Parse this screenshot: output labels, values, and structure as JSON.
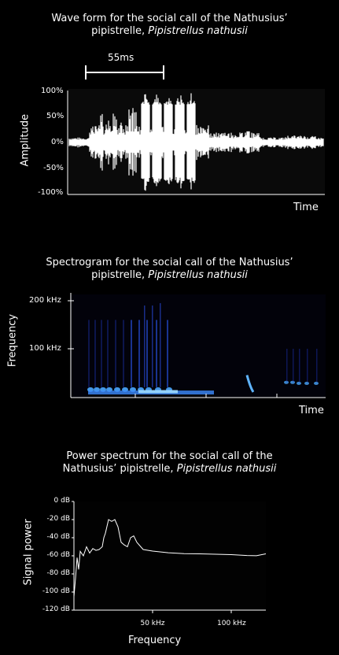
{
  "chart_data": [
    {
      "type": "waveform",
      "title": "Wave form for the social call of the Nathusius’",
      "title_line2": "pipistrelle,",
      "title_species": "Pipistrellus nathusii",
      "xlabel": "Time",
      "ylabel": "Amplitude",
      "y_ticks": [
        "100%",
        "50%",
        "0%",
        "-50%",
        "-100%"
      ],
      "ylim": [
        -100,
        100
      ],
      "duration_annotation": "55ms",
      "pulses_relative_time": [
        0.3,
        0.345,
        0.39,
        0.435,
        0.48
      ]
    },
    {
      "type": "heatmap",
      "title": "Spectrogram for the social call of the Nathusius’",
      "title_line2": "pipistrelle,",
      "title_species": "Pipistrellus nathusii",
      "xlabel": "Time",
      "ylabel": "Frequency",
      "y_ticks": [
        "200 kHz",
        "100 kHz"
      ],
      "y_tick_values": [
        200,
        100
      ],
      "ylim": [
        0,
        220
      ],
      "colors": {
        "background": "#000000",
        "low": "#1a2fd0",
        "high": "#9fdcff"
      }
    },
    {
      "type": "line",
      "title": "Power spectrum for the social call of the",
      "title_line2": "Nathusius’ pipistrelle,",
      "title_species": "Pipistrellus nathusii",
      "xlabel": "Frequency",
      "ylabel": "Signal power",
      "y_ticks": [
        "0 dB",
        "-20 dB",
        "-40 dB",
        "-60 dB",
        "-80 dB",
        "-100 dB",
        "-120 dB"
      ],
      "ylim": [
        -120,
        0
      ],
      "x_ticks": [
        "50 kHz",
        "100 kHz"
      ],
      "x_tick_values": [
        50,
        100
      ],
      "xlim": [
        0,
        122
      ],
      "series": [
        {
          "x": [
            0,
            1,
            2,
            3,
            4,
            6,
            8,
            10,
            12,
            14,
            16,
            18,
            19,
            20,
            22,
            24,
            26,
            28,
            30,
            32,
            34,
            36,
            38,
            40,
            44,
            50,
            60,
            70,
            80,
            90,
            100,
            110,
            116,
            122
          ],
          "y": [
            -105,
            -85,
            -62,
            -75,
            -55,
            -60,
            -50,
            -57,
            -52,
            -54,
            -53,
            -50,
            -40,
            -35,
            -20,
            -22,
            -20,
            -28,
            -45,
            -48,
            -50,
            -40,
            -38,
            -45,
            -53,
            -55,
            -57,
            -57,
            -58,
            -58,
            -59,
            -59,
            -60,
            -58
          ]
        }
      ]
    }
  ]
}
